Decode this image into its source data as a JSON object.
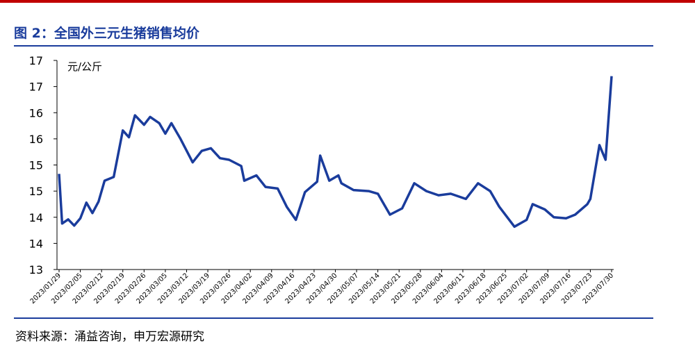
{
  "chart_data": {
    "type": "line",
    "title": "图 2：全国外三元生猪销售均价",
    "y_unit": "元/公斤",
    "source": "资料来源：涌益咨询，申万宏源研究",
    "x": [
      "2023/01/29",
      "2023/01/30",
      "2023/02/01",
      "2023/02/03",
      "2023/02/05",
      "2023/02/07",
      "2023/02/09",
      "2023/02/11",
      "2023/02/13",
      "2023/02/16",
      "2023/02/19",
      "2023/02/21",
      "2023/02/23",
      "2023/02/26",
      "2023/02/28",
      "2023/03/03",
      "2023/03/05",
      "2023/03/07",
      "2023/03/10",
      "2023/03/14",
      "2023/03/17",
      "2023/03/20",
      "2023/03/23",
      "2023/03/26",
      "2023/03/30",
      "2023/03/31",
      "2023/04/04",
      "2023/04/07",
      "2023/04/11",
      "2023/04/14",
      "2023/04/17",
      "2023/04/20",
      "2023/04/24",
      "2023/04/25",
      "2023/04/28",
      "2023/05/01",
      "2023/05/02",
      "2023/05/06",
      "2023/05/11",
      "2023/05/14",
      "2023/05/18",
      "2023/05/22",
      "2023/05/26",
      "2023/05/30",
      "2023/06/03",
      "2023/06/07",
      "2023/06/12",
      "2023/06/16",
      "2023/06/20",
      "2023/06/23",
      "2023/06/28",
      "2023/07/02",
      "2023/07/04",
      "2023/07/08",
      "2023/07/11",
      "2023/07/15",
      "2023/07/18",
      "2023/07/22",
      "2023/07/23",
      "2023/07/26",
      "2023/07/28",
      "2023/07/30"
    ],
    "series": [
      {
        "name": "全国外三元生猪销售均价",
        "color": "#1a3c9c",
        "values": [
          14.83,
          13.88,
          13.96,
          13.84,
          13.98,
          14.28,
          14.08,
          14.3,
          14.7,
          14.77,
          15.66,
          15.53,
          15.95,
          15.77,
          15.92,
          15.8,
          15.6,
          15.8,
          15.5,
          15.05,
          15.27,
          15.32,
          15.13,
          15.1,
          14.98,
          14.7,
          14.8,
          14.58,
          14.55,
          14.2,
          13.95,
          14.48,
          14.68,
          15.18,
          14.7,
          14.8,
          14.65,
          14.52,
          14.5,
          14.45,
          14.05,
          14.17,
          14.65,
          14.5,
          14.42,
          14.45,
          14.35,
          14.65,
          14.5,
          14.2,
          13.82,
          13.95,
          14.25,
          14.15,
          14.0,
          13.98,
          14.05,
          14.25,
          14.35,
          15.38,
          15.1,
          16.7
        ]
      }
    ],
    "xlim": [
      "2023/01/29",
      "2023/07/30"
    ],
    "xticks": [
      "2023/01/29",
      "2023/02/05",
      "2023/02/12",
      "2023/02/19",
      "2023/02/26",
      "2023/03/05",
      "2023/03/12",
      "2023/03/19",
      "2023/03/26",
      "2023/04/02",
      "2023/04/09",
      "2023/04/16",
      "2023/04/23",
      "2023/04/30",
      "2023/05/07",
      "2023/05/14",
      "2023/05/21",
      "2023/05/28",
      "2023/06/04",
      "2023/06/11",
      "2023/06/18",
      "2023/06/25",
      "2023/07/02",
      "2023/07/09",
      "2023/07/16",
      "2023/07/23",
      "2023/07/30"
    ],
    "ylim": [
      13,
      17
    ],
    "yticks": [
      13,
      {
        "value": 13.5,
        "label": "14"
      },
      14,
      {
        "value": 14.5,
        "label": "15"
      },
      15,
      {
        "value": 15.5,
        "label": "16"
      },
      16,
      {
        "value": 16.5,
        "label": "17"
      },
      17
    ]
  }
}
